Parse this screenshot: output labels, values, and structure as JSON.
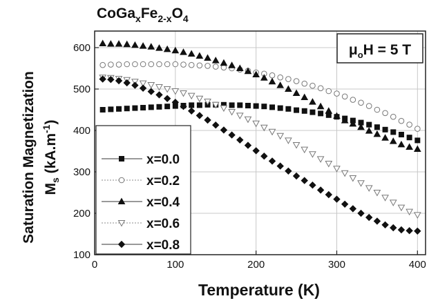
{
  "chart_data": {
    "type": "scatter",
    "title": "CoGaₓFe₂₋ₓO₄",
    "title_parts": {
      "a": "CoGa",
      "b": "x",
      "c": "Fe",
      "d": "2-x",
      "e": "O",
      "f": "4"
    },
    "annotation_parts": {
      "a": "μ",
      "b": "o",
      "c": "H = 5 T"
    },
    "xlabel": "Temperature (K)",
    "ylabel_parts": {
      "line1": "Saturation Magnetization",
      "m": "M",
      "s": "s",
      "unit_pre": " (kA.m",
      "sup": "-1",
      "unit_post": ")"
    },
    "xlim": [
      0,
      410
    ],
    "ylim": [
      100,
      640
    ],
    "xticks": [
      0,
      100,
      200,
      300,
      400
    ],
    "yticks": [
      100,
      200,
      300,
      400,
      500,
      600
    ],
    "grid": true,
    "legend_position": "bottom-left",
    "x": [
      10,
      20,
      30,
      40,
      50,
      60,
      70,
      80,
      90,
      100,
      110,
      120,
      130,
      140,
      150,
      160,
      170,
      180,
      190,
      200,
      210,
      220,
      230,
      240,
      250,
      260,
      270,
      280,
      290,
      300,
      310,
      320,
      330,
      340,
      350,
      360,
      370,
      380,
      390,
      400
    ],
    "series": [
      {
        "name": "x=0.0",
        "marker": "square",
        "fill": "#111111",
        "values": [
          450,
          451,
          452,
          453,
          454,
          455,
          456,
          457,
          458,
          459,
          460,
          461,
          461,
          462,
          462,
          462,
          461,
          461,
          460,
          459,
          458,
          456,
          454,
          452,
          449,
          447,
          444,
          441,
          437,
          433,
          429,
          424,
          419,
          414,
          408,
          402,
          396,
          390,
          383,
          376
        ]
      },
      {
        "name": "x=0.2",
        "marker": "circle",
        "fill": "none",
        "values": [
          558,
          559,
          559,
          560,
          560,
          560,
          560,
          560,
          560,
          560,
          559,
          558,
          557,
          556,
          554,
          552,
          550,
          547,
          544,
          540,
          537,
          533,
          528,
          524,
          519,
          513,
          508,
          502,
          495,
          489,
          482,
          474,
          467,
          459,
          450,
          442,
          433,
          423,
          414,
          404
        ]
      },
      {
        "name": "x=0.4",
        "marker": "triangle-up",
        "fill": "#111111",
        "values": [
          610,
          609,
          609,
          608,
          606,
          604,
          602,
          599,
          596,
          593,
          589,
          585,
          580,
          575,
          569,
          563,
          557,
          550,
          543,
          535,
          527,
          518,
          509,
          500,
          490,
          480,
          469,
          458,
          447,
          435,
          424,
          416,
          408,
          399,
          391,
          382,
          374,
          366,
          360,
          355
        ]
      },
      {
        "name": "x=0.6",
        "marker": "triangle-down",
        "fill": "none",
        "values": [
          528,
          527,
          525,
          522,
          518,
          514,
          510,
          505,
          500,
          495,
          490,
          484,
          477,
          470,
          462,
          454,
          445,
          436,
          427,
          417,
          407,
          397,
          387,
          376,
          365,
          354,
          343,
          331,
          320,
          308,
          297,
          285,
          273,
          261,
          250,
          238,
          226,
          214,
          204,
          196
        ]
      },
      {
        "name": "x=0.8",
        "marker": "diamond",
        "fill": "#111111",
        "values": [
          524,
          523,
          520,
          515,
          509,
          502,
          494,
          486,
          477,
          468,
          458,
          447,
          436,
          425,
          413,
          401,
          389,
          377,
          364,
          351,
          338,
          326,
          314,
          302,
          290,
          279,
          268,
          256,
          245,
          234,
          222,
          211,
          200,
          190,
          181,
          172,
          165,
          160,
          158,
          157
        ]
      }
    ]
  }
}
